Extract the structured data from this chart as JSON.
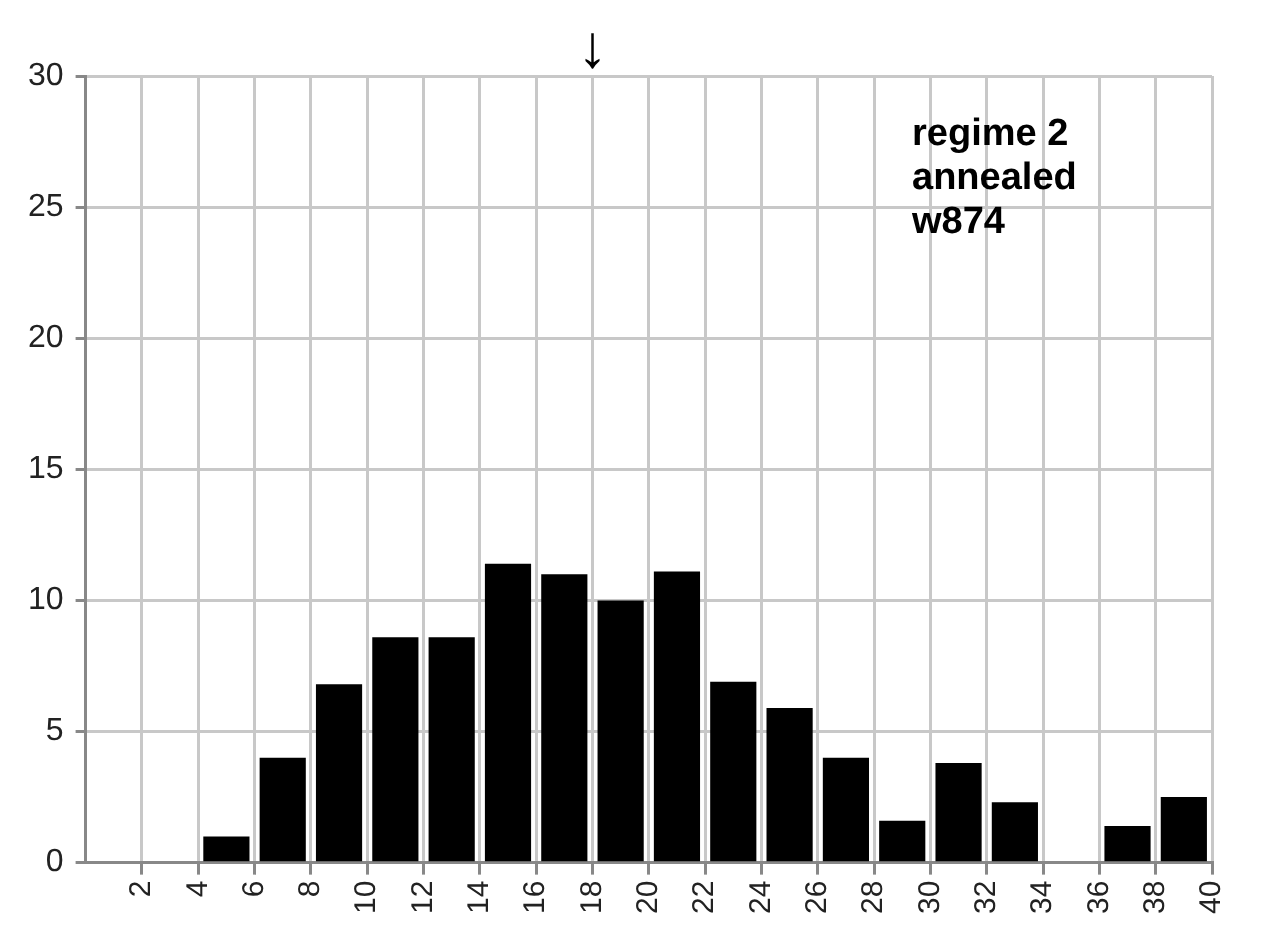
{
  "chart_data": {
    "type": "histogram",
    "bins": [
      0,
      2,
      4,
      6,
      8,
      10,
      12,
      14,
      16,
      18,
      20,
      22,
      24,
      26,
      28,
      30,
      32,
      34,
      36,
      38,
      40
    ],
    "values": [
      0,
      0,
      1,
      4,
      6.8,
      8.6,
      8.6,
      11.4,
      11,
      10,
      11.1,
      6.9,
      5.9,
      4,
      1.6,
      3.8,
      2.3,
      0,
      1.4,
      2.5
    ],
    "color": "#000000",
    "xlim": [
      0,
      40
    ],
    "xticks": [
      2,
      4,
      6,
      8,
      10,
      12,
      14,
      16,
      18,
      20,
      22,
      24,
      26,
      28,
      30,
      32,
      34,
      36,
      38,
      40
    ],
    "ylim": [
      0,
      30
    ],
    "yticks": [
      0,
      5,
      10,
      15,
      20,
      25,
      30
    ],
    "grid": true,
    "legend": false,
    "annotations": [
      "regime 2\nannealed\nw874",
      "↓"
    ]
  }
}
